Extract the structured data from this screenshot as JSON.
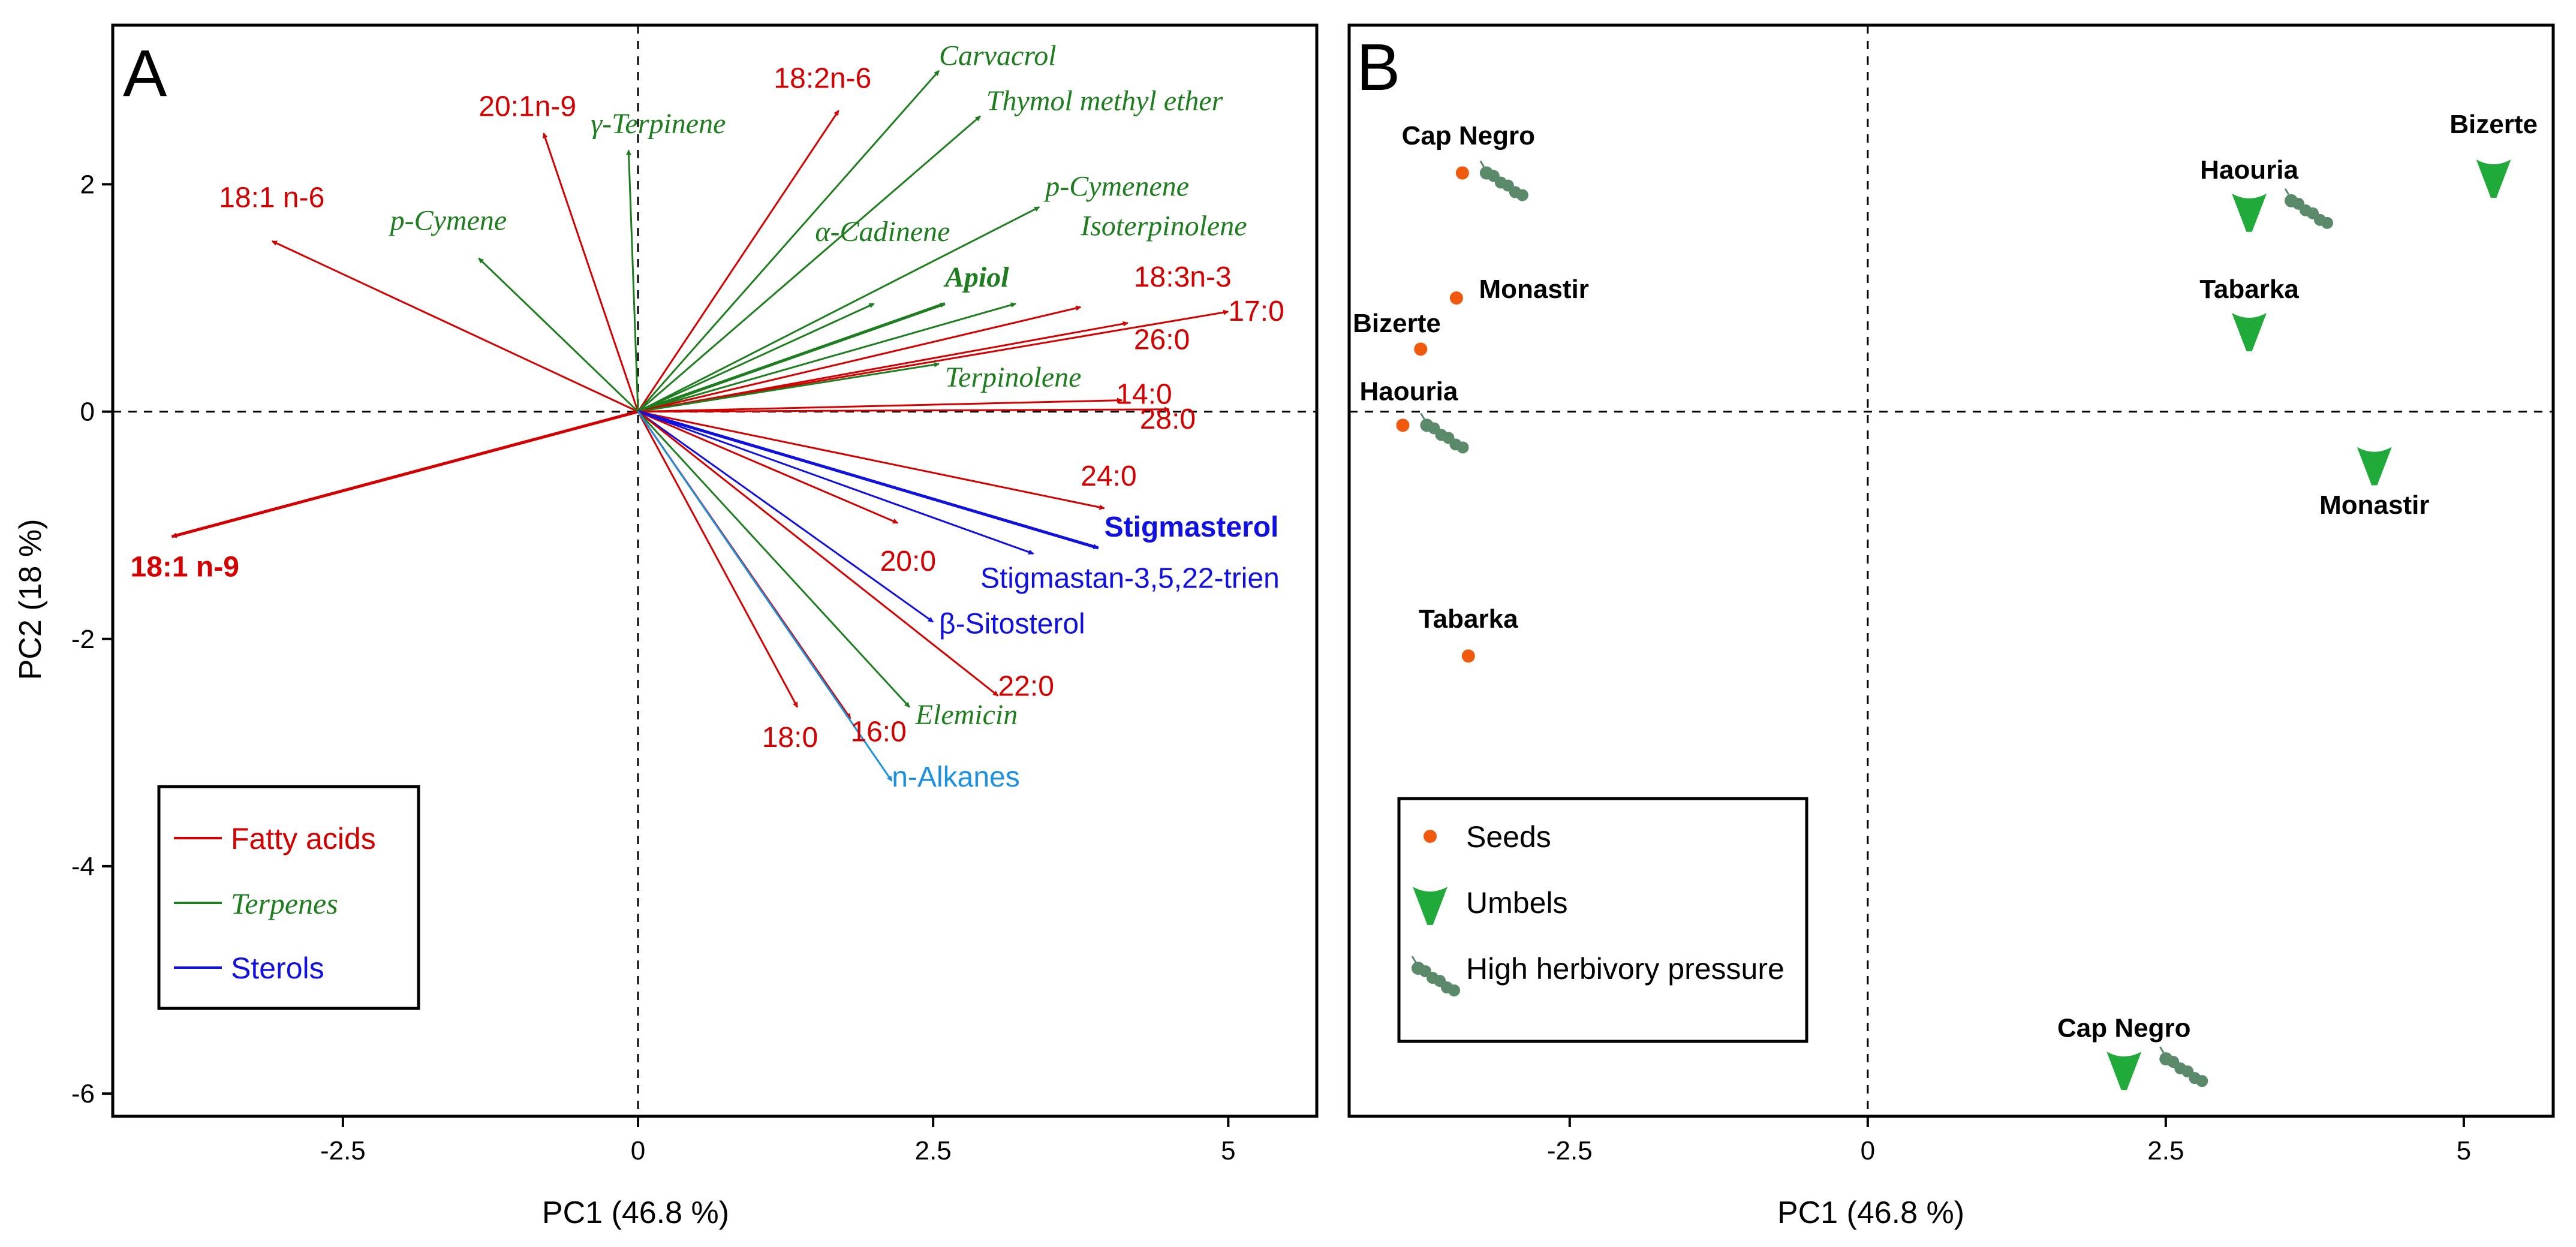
{
  "colors": {
    "fatty": "#d40000",
    "terpene": "#1e7d1e",
    "sterol": "#1010e0",
    "alkane": "#1e90e0",
    "seed": "#f05a0f",
    "umbel": "#1faa3a",
    "herbivory": "#5a8a6a"
  },
  "chart_data": [
    {
      "type": "scatter",
      "panel": "A",
      "title": "A",
      "xlabel": "PC1 (46.8 %)",
      "ylabel": "PC2 (18 %)",
      "xlim": [
        -4.45,
        5.75
      ],
      "ylim": [
        -6.2,
        3.4
      ],
      "xticks": [
        -2.5,
        0,
        2.5,
        5
      ],
      "xtick_labels": [
        "-2.5",
        "0",
        "2.5",
        "5"
      ],
      "yticks": [
        2,
        0,
        -2,
        -4,
        -6
      ],
      "ytick_labels": [
        "2",
        "0",
        "-2",
        "-4",
        "-6"
      ],
      "vectors": [
        {
          "name": "18:1 n-9",
          "group": "fatty",
          "x": -3.95,
          "y": -1.1,
          "style": "bold",
          "lx": -4.3,
          "ly": -1.45
        },
        {
          "name": "18:1 n-6",
          "group": "fatty",
          "x": -3.1,
          "y": 1.5,
          "style": "normal",
          "lx": -3.55,
          "ly": 1.8
        },
        {
          "name": "20:1n-9",
          "group": "fatty",
          "x": -0.8,
          "y": 2.45,
          "style": "normal",
          "lx": -1.35,
          "ly": 2.6
        },
        {
          "name": "γ-Terpinene",
          "group": "terpene",
          "x": -0.08,
          "y": 2.3,
          "style": "italic",
          "lx": -0.4,
          "ly": 2.45
        },
        {
          "name": "p-Cymene",
          "group": "terpene",
          "x": -1.35,
          "y": 1.35,
          "style": "italic",
          "lx": -2.1,
          "ly": 1.6
        },
        {
          "name": "18:2n-6",
          "group": "fatty",
          "x": 1.7,
          "y": 2.65,
          "style": "normal",
          "lx": 1.15,
          "ly": 2.85
        },
        {
          "name": "Carvacrol",
          "group": "terpene",
          "x": 2.55,
          "y": 3.0,
          "style": "italic",
          "lx": 2.55,
          "ly": 3.05
        },
        {
          "name": "Thymol methyl ether",
          "group": "terpene",
          "x": 2.9,
          "y": 2.6,
          "style": "italic",
          "lx": 2.95,
          "ly": 2.65
        },
        {
          "name": "p-Cymenene",
          "group": "terpene",
          "x": 3.4,
          "y": 1.8,
          "style": "italic",
          "lx": 3.45,
          "ly": 1.9
        },
        {
          "name": "α-Cadinene",
          "group": "terpene",
          "x": 2.0,
          "y": 0.95,
          "style": "italic",
          "lx": 1.5,
          "ly": 1.5
        },
        {
          "name": "Isoterpinolene",
          "group": "terpene",
          "x": 3.2,
          "y": 0.95,
          "style": "italic",
          "lx": 3.75,
          "ly": 1.55
        },
        {
          "name": "Apiol",
          "group": "terpene",
          "x": 2.6,
          "y": 0.95,
          "style": "bolditalic",
          "lx": 2.6,
          "ly": 1.1
        },
        {
          "name": "18:3n-3",
          "group": "fatty",
          "x": 3.75,
          "y": 0.92,
          "style": "normal",
          "lx": 4.2,
          "ly": 1.1
        },
        {
          "name": "17:0",
          "group": "fatty",
          "x": 5.0,
          "y": 0.88,
          "style": "normal",
          "lx": 5.0,
          "ly": 0.8
        },
        {
          "name": "26:0",
          "group": "fatty",
          "x": 4.15,
          "y": 0.78,
          "style": "normal",
          "lx": 4.2,
          "ly": 0.55
        },
        {
          "name": "Terpinolene",
          "group": "terpene",
          "x": 2.55,
          "y": 0.42,
          "style": "italic",
          "lx": 2.6,
          "ly": 0.22
        },
        {
          "name": "14:0",
          "group": "fatty",
          "x": 4.1,
          "y": 0.1,
          "style": "normal",
          "lx": 4.05,
          "ly": 0.07
        },
        {
          "name": "28:0",
          "group": "fatty",
          "x": 4.5,
          "y": 0.02,
          "style": "normal",
          "lx": 4.25,
          "ly": -0.15
        },
        {
          "name": "24:0",
          "group": "fatty",
          "x": 3.95,
          "y": -0.85,
          "style": "normal",
          "lx": 3.75,
          "ly": -0.65
        },
        {
          "name": "Stigmasterol",
          "group": "sterol",
          "x": 3.9,
          "y": -1.2,
          "style": "bold",
          "lx": 3.95,
          "ly": -1.1
        },
        {
          "name": "20:0",
          "group": "fatty",
          "x": 2.2,
          "y": -0.98,
          "style": "normal",
          "lx": 2.05,
          "ly": -1.4
        },
        {
          "name": "Stigmastan-3,5,22-trien",
          "group": "sterol",
          "x": 3.35,
          "y": -1.25,
          "style": "normal",
          "lx": 2.9,
          "ly": -1.55
        },
        {
          "name": "β-Sitosterol",
          "group": "sterol",
          "x": 2.5,
          "y": -1.85,
          "style": "normal",
          "lx": 2.55,
          "ly": -1.95
        },
        {
          "name": "22:0",
          "group": "fatty",
          "x": 3.05,
          "y": -2.5,
          "style": "normal",
          "lx": 3.05,
          "ly": -2.5
        },
        {
          "name": "Elemicin",
          "group": "terpene",
          "x": 2.3,
          "y": -2.6,
          "style": "italic",
          "lx": 2.35,
          "ly": -2.75
        },
        {
          "name": "18:0",
          "group": "fatty",
          "x": 1.35,
          "y": -2.6,
          "style": "normal",
          "lx": 1.05,
          "ly": -2.95
        },
        {
          "name": "16:0",
          "group": "fatty",
          "x": 1.8,
          "y": -2.7,
          "style": "normal",
          "lx": 1.8,
          "ly": -2.9
        },
        {
          "name": "n-Alkanes",
          "group": "alkane",
          "x": 2.15,
          "y": -3.25,
          "style": "normal",
          "lx": 2.15,
          "ly": -3.3
        }
      ],
      "legend": [
        {
          "label": "Fatty acids",
          "group": "fatty",
          "style": "normal"
        },
        {
          "label": "Terpenes",
          "group": "terpene",
          "style": "italic"
        },
        {
          "label": "Sterols",
          "group": "sterol",
          "style": "normal"
        }
      ]
    },
    {
      "type": "scatter",
      "panel": "B",
      "title": "B",
      "xlabel": "PC1 (46.8 %)",
      "ylabel": "",
      "xlim": [
        -4.35,
        5.75
      ],
      "ylim": [
        -6.2,
        3.4
      ],
      "xticks": [
        -2.5,
        0,
        2.5,
        5
      ],
      "xtick_labels": [
        "-2.5",
        "0",
        "2.5",
        "5"
      ],
      "points": [
        {
          "site": "Cap Negro",
          "kind": "seed",
          "x": -3.4,
          "y": 2.1,
          "herbivory": true,
          "lx": -3.35,
          "ly": 2.35
        },
        {
          "site": "Monastir",
          "kind": "seed",
          "x": -3.45,
          "y": 1.0,
          "herbivory": false,
          "lx": -2.8,
          "ly": 1.0
        },
        {
          "site": "Bizerte",
          "kind": "seed",
          "x": -3.75,
          "y": 0.55,
          "herbivory": false,
          "lx": -3.95,
          "ly": 0.7
        },
        {
          "site": "Haouria",
          "kind": "seed",
          "x": -3.9,
          "y": -0.12,
          "herbivory": true,
          "lx": -3.85,
          "ly": 0.1
        },
        {
          "site": "Tabarka",
          "kind": "seed",
          "x": -3.35,
          "y": -2.15,
          "herbivory": false,
          "lx": -3.35,
          "ly": -1.9
        },
        {
          "site": "Bizerte",
          "kind": "umbel",
          "x": 5.25,
          "y": 2.05,
          "herbivory": false,
          "lx": 5.25,
          "ly": 2.45
        },
        {
          "site": "Haouria",
          "kind": "umbel",
          "x": 3.2,
          "y": 1.75,
          "herbivory": true,
          "lx": 3.2,
          "ly": 2.05
        },
        {
          "site": "Tabarka",
          "kind": "umbel",
          "x": 3.2,
          "y": 0.7,
          "herbivory": false,
          "lx": 3.2,
          "ly": 1.0
        },
        {
          "site": "Monastir",
          "kind": "umbel",
          "x": 4.25,
          "y": -0.48,
          "herbivory": false,
          "lx": 4.25,
          "ly": -0.9
        },
        {
          "site": "Cap Negro",
          "kind": "umbel",
          "x": 2.15,
          "y": -5.8,
          "herbivory": true,
          "lx": 2.15,
          "ly": -5.5
        }
      ],
      "legend": [
        {
          "label": "Seeds",
          "kind": "seed"
        },
        {
          "label": "Umbels",
          "kind": "umbel"
        },
        {
          "label": "High herbivory pressure",
          "kind": "herbivory"
        }
      ]
    }
  ]
}
